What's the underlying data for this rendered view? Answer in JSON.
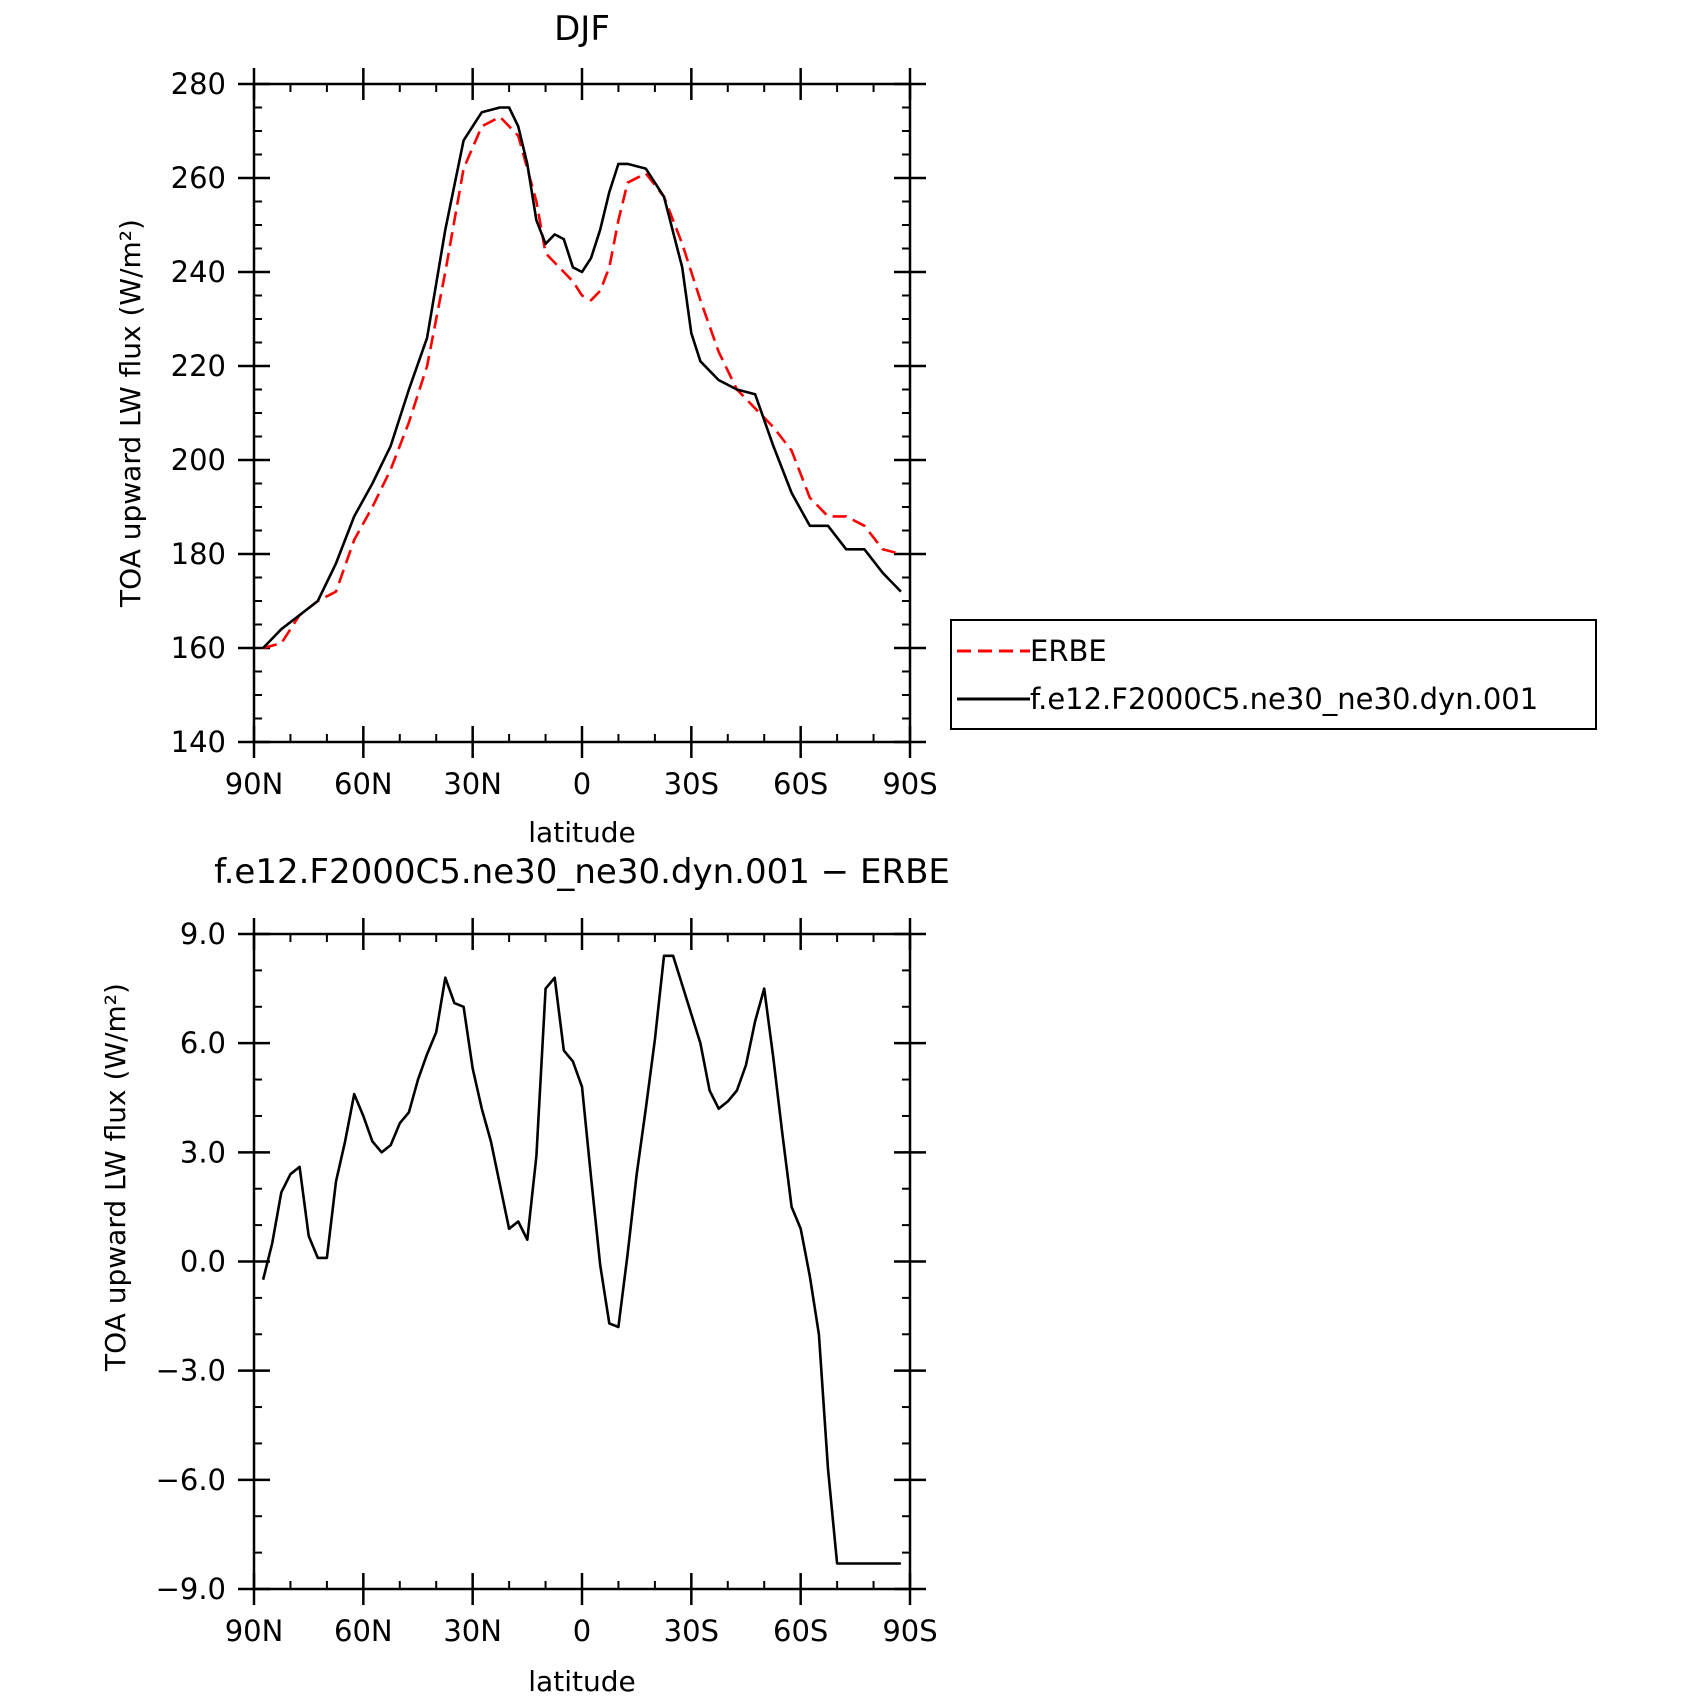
{
  "colors": {
    "background": "#ffffff",
    "axis": "#000000",
    "model_line": "#000000",
    "obs_line": "#ff0000"
  },
  "legend": {
    "entries": [
      "ERBE",
      "f.e12.F2000C5.ne30_ne30.dyn.001"
    ],
    "placement": "right of top panel"
  },
  "chart_data": [
    {
      "type": "line",
      "title": "DJF",
      "xlabel": "latitude",
      "ylabel": "TOA upward LW flux (W/m²)",
      "xlim": [
        -90,
        90
      ],
      "ylim": [
        140,
        280
      ],
      "x_ticks": [
        -90,
        -60,
        -30,
        0,
        30,
        60,
        90
      ],
      "x_tick_labels": [
        "90N",
        "60N",
        "30N",
        "0",
        "30S",
        "60S",
        "90S"
      ],
      "y_ticks": [
        140,
        160,
        180,
        200,
        220,
        240,
        260,
        280
      ],
      "y_tick_labels": [
        "140",
        "160",
        "180",
        "200",
        "220",
        "240",
        "260",
        "280"
      ],
      "x_minor_step": 10,
      "y_minor_step": 5,
      "grid": false,
      "series": [
        {
          "name": "ERBE",
          "color": "#ff0000",
          "dash": "dashed",
          "x": [
            -87.5,
            -82.5,
            -77.5,
            -72.5,
            -67.5,
            -62.5,
            -57.5,
            -52.5,
            -47.5,
            -42.5,
            -37.5,
            -32.5,
            -27.5,
            -22.5,
            -17.5,
            -12.5,
            -10,
            -7.5,
            -5,
            -2.5,
            0,
            2.5,
            5,
            7.5,
            10,
            12.5,
            17.5,
            22.5,
            27.5,
            32.5,
            37.5,
            42.5,
            47.5,
            52.5,
            57.5,
            62.5,
            67.5,
            72.5,
            77.5,
            82.5,
            87.5
          ],
          "y": [
            160,
            161,
            167,
            170,
            172,
            183,
            190,
            198,
            208,
            220,
            240,
            262,
            271,
            273,
            269,
            255,
            244,
            242,
            240,
            238,
            235,
            234,
            236,
            241,
            251,
            259,
            261,
            256,
            246,
            234,
            223,
            215,
            211,
            207,
            202,
            192,
            188,
            188,
            186,
            181,
            180
          ],
          "note_trim": false
        },
        {
          "name": "f.e12.F2000C5.ne30_ne30.dyn.001",
          "color": "#000000",
          "dash": "solid",
          "x": [
            -87.5,
            -82.5,
            -77.5,
            -72.5,
            -67.5,
            -62.5,
            -57.5,
            -52.5,
            -47.5,
            -42.5,
            -37.5,
            -32.5,
            -27.5,
            -22.5,
            -20,
            -17.5,
            -15,
            -12.5,
            -10,
            -7.5,
            -5,
            -2.5,
            0,
            2.5,
            5,
            7.5,
            10,
            12.5,
            17.5,
            22.5,
            27.5,
            30,
            32.5,
            37.5,
            42.5,
            47.5,
            52.5,
            57.5,
            62.5,
            67.5,
            72.5,
            77.5,
            82.5,
            87.5
          ],
          "y": [
            160,
            164,
            167,
            170,
            178,
            188,
            195,
            203,
            215,
            226,
            249,
            268,
            274,
            275,
            275,
            271,
            263,
            251,
            246,
            248,
            247,
            241,
            240,
            243,
            249,
            257,
            263,
            263,
            262,
            256,
            241,
            227,
            221,
            217,
            215,
            214,
            203,
            193,
            186,
            186,
            181,
            181,
            176,
            172
          ]
        }
      ]
    },
    {
      "type": "line",
      "title": "f.e12.F2000C5.ne30_ne30.dyn.001 − ERBE",
      "xlabel": "latitude",
      "ylabel": "TOA upward LW flux (W/m²)",
      "xlim": [
        -90,
        90
      ],
      "ylim": [
        -9,
        9
      ],
      "x_ticks": [
        -90,
        -60,
        -30,
        0,
        30,
        60,
        90
      ],
      "x_tick_labels": [
        "90N",
        "60N",
        "30N",
        "0",
        "30S",
        "60S",
        "90S"
      ],
      "y_ticks": [
        -9,
        -6,
        -3,
        0,
        3,
        6,
        9
      ],
      "y_tick_labels": [
        "−9.0",
        "−6.0",
        "−3.0",
        "0.0",
        "3.0",
        "6.0",
        "9.0"
      ],
      "x_minor_step": 10,
      "y_minor_step": 1,
      "grid": false,
      "series": [
        {
          "name": "f.e12.F2000C5.ne30_ne30.dyn.001 − ERBE",
          "color": "#000000",
          "dash": "solid",
          "x": [
            -87.5,
            -85,
            -82.5,
            -80,
            -77.5,
            -75,
            -72.5,
            -70,
            -67.5,
            -65,
            -62.5,
            -60,
            -57.5,
            -55,
            -52.5,
            -50,
            -47.5,
            -45,
            -42.5,
            -40,
            -37.5,
            -35,
            -32.5,
            -30,
            -27.5,
            -25,
            -22.5,
            -20,
            -17.5,
            -15,
            -12.5,
            -10,
            -7.5,
            -5,
            -2.5,
            0,
            2.5,
            5,
            7.5,
            10,
            12.5,
            15,
            17.5,
            20,
            22.5,
            25,
            27.5,
            30,
            32.5,
            35,
            37.5,
            40,
            42.5,
            45,
            47.5,
            50,
            52.5,
            55,
            57.5,
            60,
            62.5,
            65,
            67.5,
            70,
            72.5,
            75,
            77.5,
            80,
            82.5,
            85,
            87.5
          ],
          "y": [
            -0.5,
            0.5,
            1.9,
            2.4,
            2.6,
            0.7,
            0.1,
            0.1,
            2.2,
            3.3,
            4.6,
            4.0,
            3.3,
            3.0,
            3.2,
            3.8,
            4.1,
            5.0,
            5.7,
            6.3,
            7.8,
            7.1,
            7.0,
            5.3,
            4.2,
            3.3,
            2.1,
            0.9,
            1.1,
            0.6,
            2.9,
            7.5,
            7.8,
            5.8,
            5.5,
            4.8,
            2.3,
            -0.1,
            -1.7,
            -1.8,
            0.2,
            2.4,
            4.2,
            6.1,
            8.4,
            8.4,
            7.6,
            6.8,
            6.0,
            4.7,
            4.2,
            4.4,
            4.7,
            5.4,
            6.6,
            7.5,
            5.6,
            3.5,
            1.5,
            0.9,
            -0.4,
            -2.0,
            -5.7,
            -8.3,
            -8.3,
            -8.3,
            -8.3,
            -8.3,
            -8.3,
            -8.3,
            -8.3
          ]
        }
      ]
    }
  ]
}
